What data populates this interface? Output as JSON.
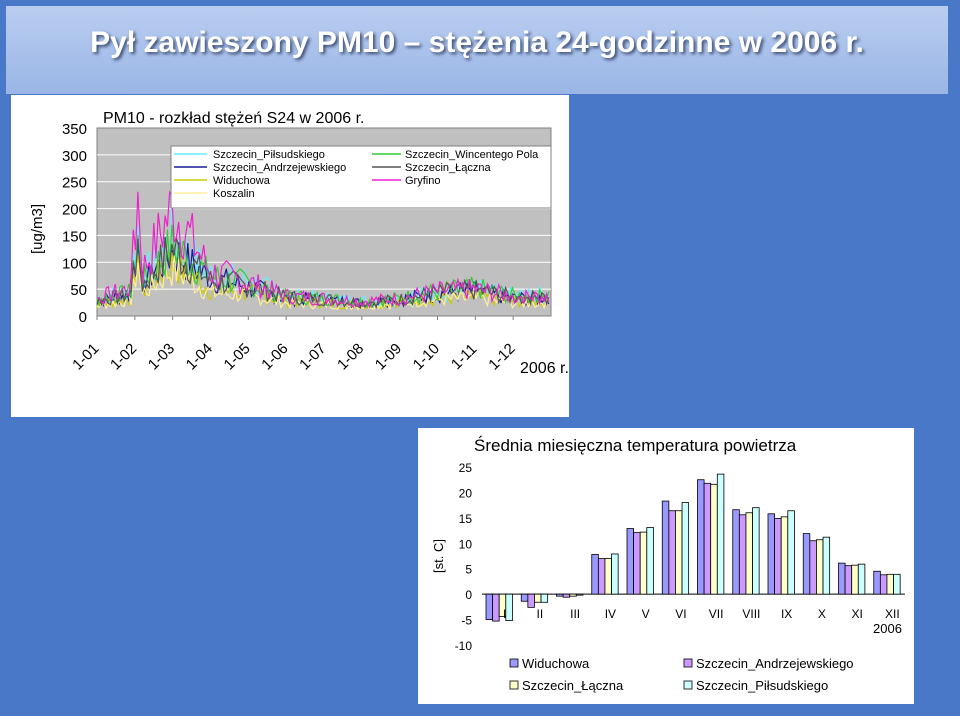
{
  "banner": {
    "title": "Pył zawieszony PM10 – stężenia 24-godzinne w 2006 r."
  },
  "colors": {
    "background": "#4a78c8",
    "plot_area": "#c0c0c0",
    "series_top": [
      "#66eeff",
      "#1a1a99",
      "#cccc00",
      "#ffee99",
      "#33cc33",
      "#555555",
      "#ee22cc"
    ],
    "series_bottom": [
      "#9999ff",
      "#cc99ff",
      "#ffffcc",
      "#ccffff"
    ]
  },
  "chart_data": [
    {
      "type": "line",
      "title": "PM10 - rozkład stężeń S24 w 2006 r.",
      "ylabel": "[ug/m3]",
      "xlabel": "2006 r.",
      "ylim": [
        0,
        350
      ],
      "yticks": [
        "0",
        "50",
        "100",
        "150",
        "200",
        "250",
        "300",
        "350"
      ],
      "categories": [
        "1-01",
        "1-02",
        "1-03",
        "1-04",
        "1-05",
        "1-06",
        "1-07",
        "1-08",
        "1-09",
        "1-10",
        "1-11",
        "1-12"
      ],
      "legend_position": "top",
      "series": [
        {
          "name": "Szczecin_Piłsudskiego",
          "values": [
            30,
            45,
            135,
            70,
            60,
            35,
            30,
            25,
            30,
            40,
            45,
            35
          ]
        },
        {
          "name": "Szczecin_Andrzejewskiego",
          "values": [
            25,
            40,
            110,
            65,
            50,
            30,
            28,
            22,
            28,
            38,
            42,
            30
          ]
        },
        {
          "name": "Widuchowa",
          "values": [
            20,
            30,
            90,
            45,
            40,
            25,
            22,
            18,
            25,
            30,
            32,
            25
          ]
        },
        {
          "name": "Koszalin",
          "values": [
            18,
            28,
            80,
            40,
            35,
            22,
            20,
            17,
            22,
            28,
            30,
            22
          ]
        },
        {
          "name": "Szczecin_Wincentego Pola",
          "values": [
            28,
            42,
            120,
            68,
            55,
            33,
            30,
            24,
            30,
            42,
            48,
            34
          ]
        },
        {
          "name": "Szczecin_Łączna",
          "values": [
            26,
            38,
            115,
            60,
            52,
            32,
            29,
            23,
            28,
            40,
            44,
            32
          ]
        },
        {
          "name": "Gryfino",
          "values": [
            30,
            50,
            185,
            75,
            58,
            34,
            30,
            25,
            30,
            42,
            46,
            33
          ]
        }
      ]
    },
    {
      "type": "bar",
      "title": "Średnia miesięczna temperatura powietrza",
      "ylabel": "[st. C]",
      "xlabel": "2006",
      "ylim": [
        -10,
        25
      ],
      "yticks": [
        "-10",
        "-5",
        "0",
        "5",
        "10",
        "15",
        "20",
        "25"
      ],
      "categories": [
        "I",
        "II",
        "III",
        "IV",
        "V",
        "VI",
        "VII",
        "VIII",
        "IX",
        "X",
        "XI",
        "XII"
      ],
      "legend_position": "bottom",
      "series": [
        {
          "name": "Widuchowa",
          "values": [
            -5.0,
            -1.4,
            -0.4,
            7.8,
            12.9,
            18.3,
            22.5,
            16.6,
            15.8,
            11.9,
            6.1,
            4.5
          ]
        },
        {
          "name": "Szczecin_Andrzejewskiego",
          "values": [
            -5.3,
            -2.6,
            -0.6,
            7.0,
            12.1,
            16.4,
            21.8,
            15.6,
            14.9,
            10.5,
            5.6,
            3.8
          ]
        },
        {
          "name": "Szczecin_Łączna",
          "values": [
            -4.4,
            -1.6,
            -0.4,
            7.0,
            12.2,
            16.4,
            21.6,
            16.0,
            15.2,
            10.7,
            5.7,
            3.9
          ]
        },
        {
          "name": "Szczecin_Piłsudskiego",
          "values": [
            -5.2,
            -1.6,
            -0.2,
            7.9,
            13.1,
            18.0,
            23.6,
            17.0,
            16.4,
            11.2,
            5.9,
            3.9
          ]
        }
      ]
    }
  ]
}
